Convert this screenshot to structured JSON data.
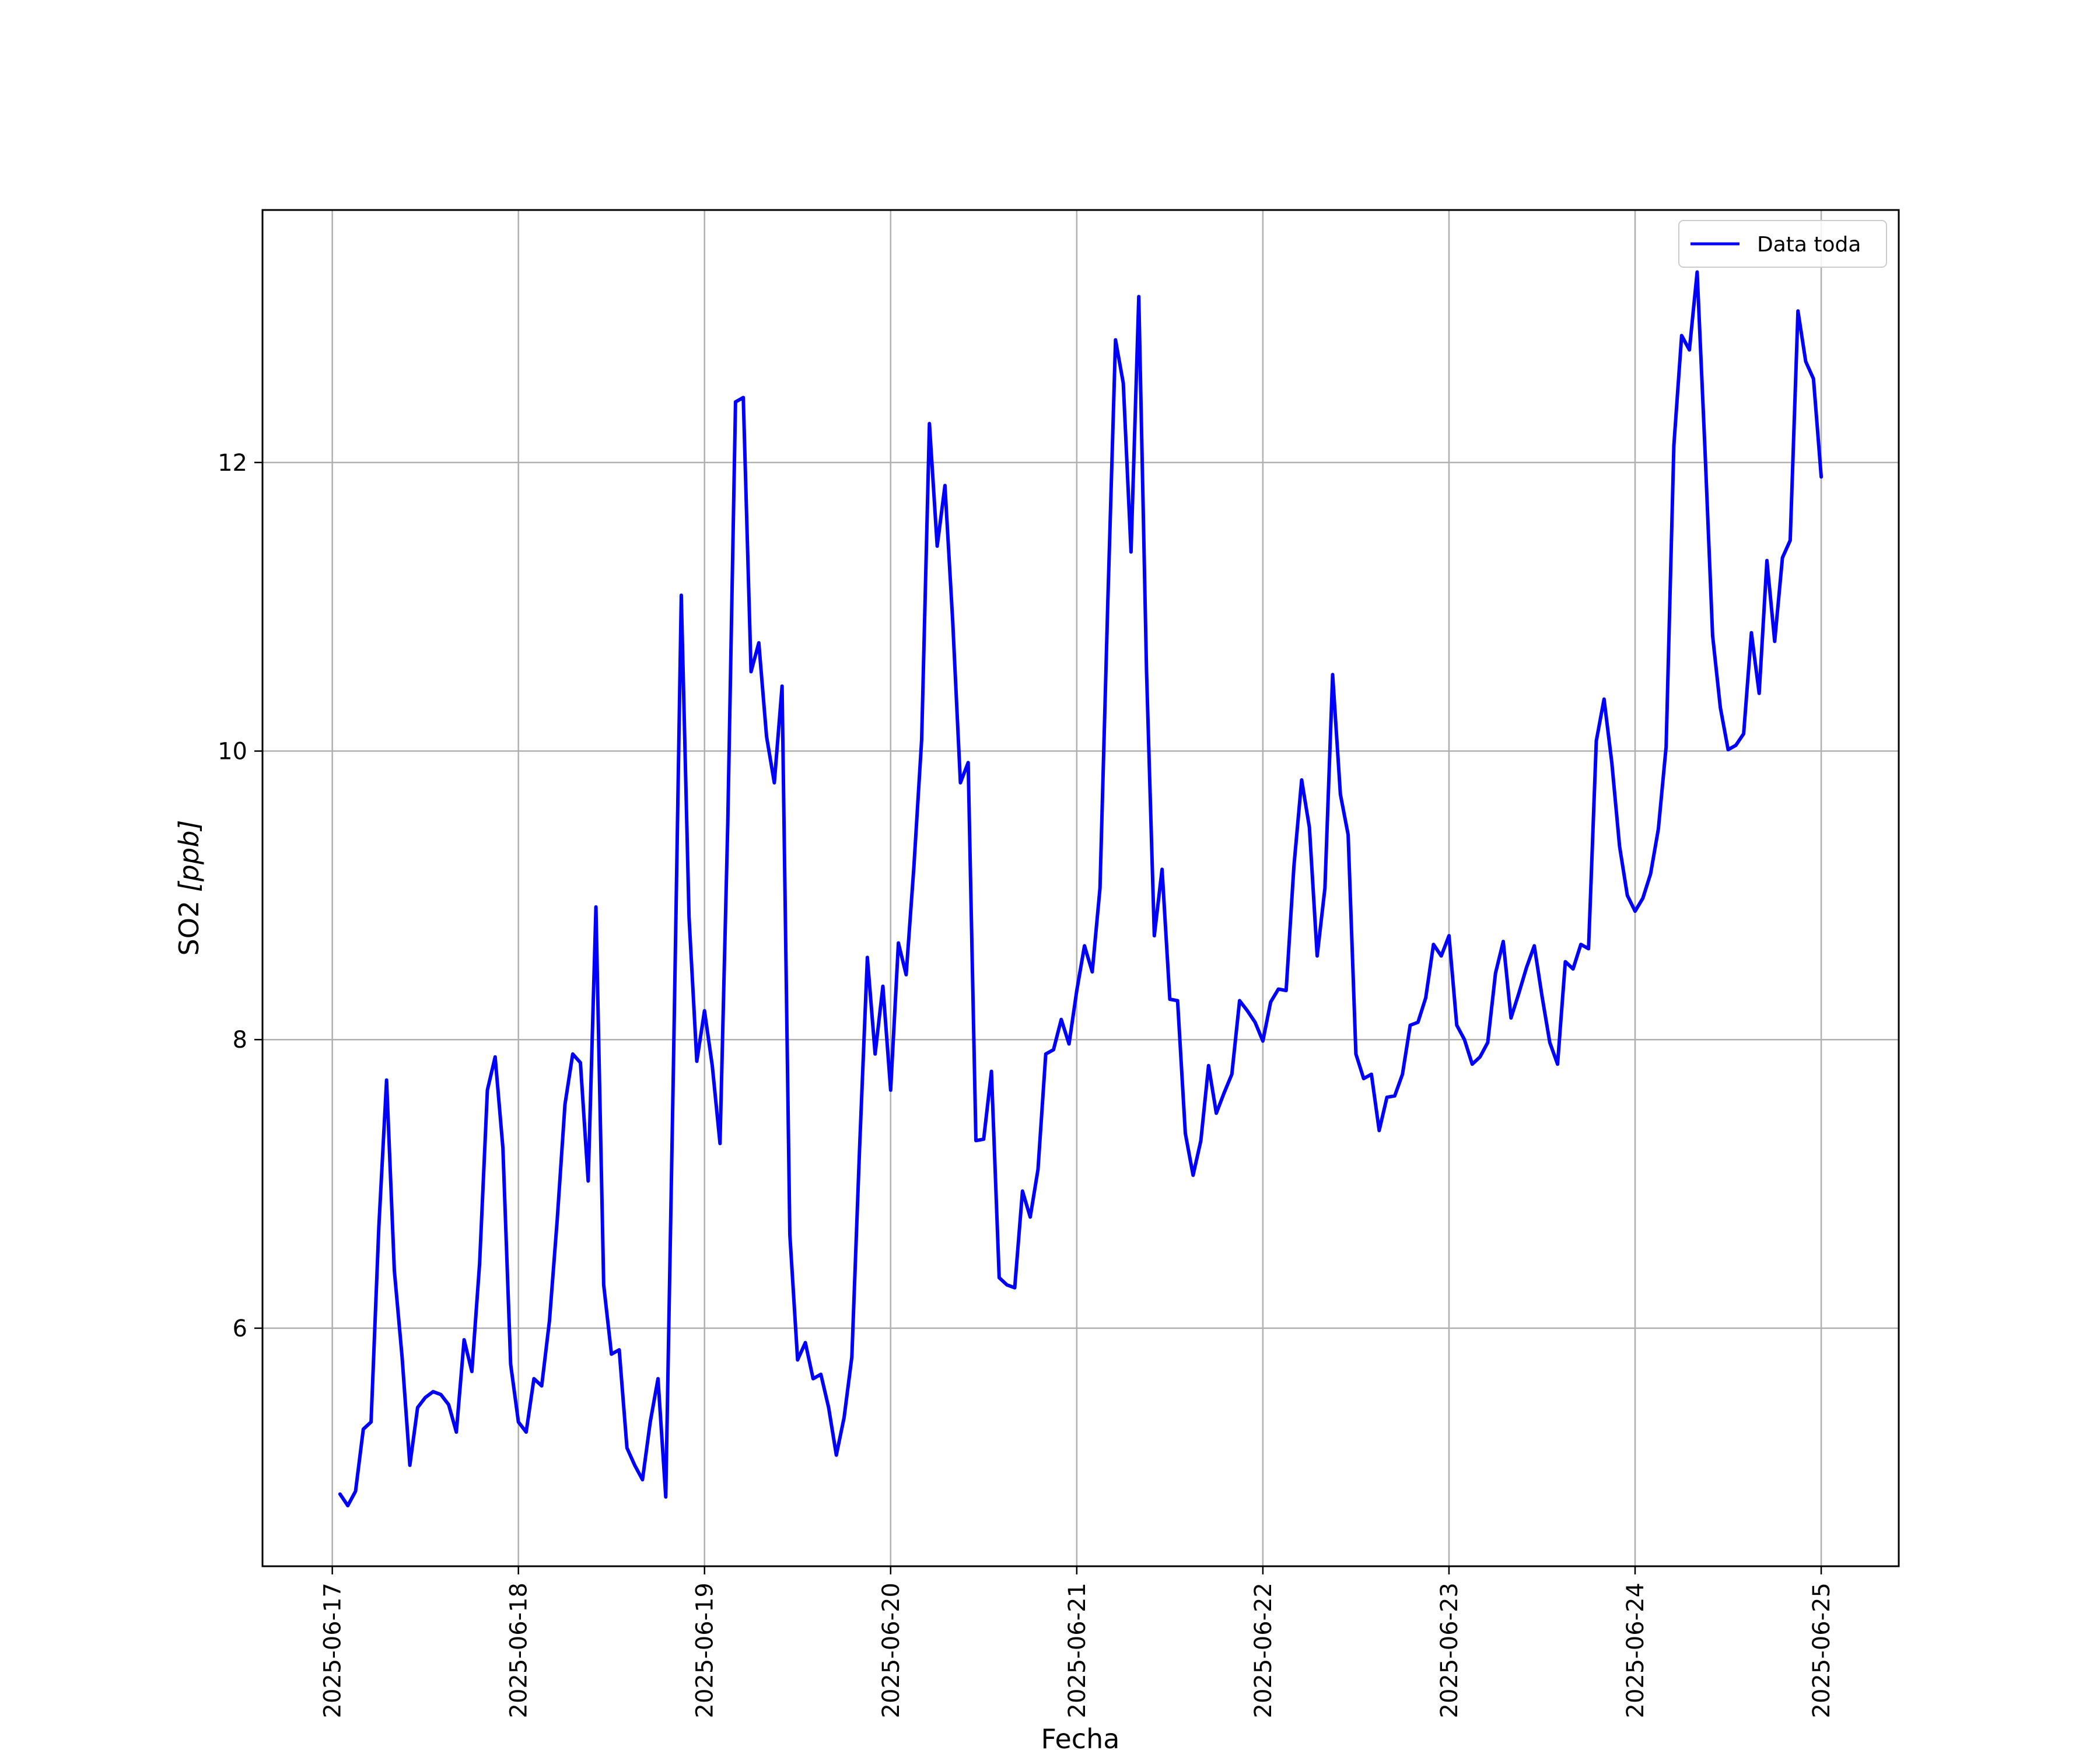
{
  "chart_data": {
    "type": "line",
    "xlabel": "Fecha",
    "ylabel_main": "SO2 ",
    "ylabel_unit": "[ppb]",
    "x_is_date": true,
    "xlim": [
      "2025-06-16 15:00",
      "2025-06-25 10:00"
    ],
    "ylim": [
      4.35,
      13.75
    ],
    "x_ticks": [
      "2025-06-17",
      "2025-06-18",
      "2025-06-19",
      "2025-06-20",
      "2025-06-21",
      "2025-06-22",
      "2025-06-23",
      "2025-06-24",
      "2025-06-25"
    ],
    "y_ticks": [
      6,
      8,
      10,
      12
    ],
    "grid": true,
    "legend_position": "top-right",
    "series": [
      {
        "name": "Data toda",
        "color": "#0000ff",
        "x": [
          "2025-06-17 01:00",
          "2025-06-17 02:00",
          "2025-06-17 03:00",
          "2025-06-17 04:00",
          "2025-06-17 05:00",
          "2025-06-17 06:00",
          "2025-06-17 07:00",
          "2025-06-17 08:00",
          "2025-06-17 09:00",
          "2025-06-17 10:00",
          "2025-06-17 11:00",
          "2025-06-17 12:00",
          "2025-06-17 13:00",
          "2025-06-17 14:00",
          "2025-06-17 15:00",
          "2025-06-17 16:00",
          "2025-06-17 17:00",
          "2025-06-17 18:00",
          "2025-06-17 19:00",
          "2025-06-17 20:00",
          "2025-06-17 21:00",
          "2025-06-17 22:00",
          "2025-06-17 23:00",
          "2025-06-18 00:00",
          "2025-06-18 01:00",
          "2025-06-18 02:00",
          "2025-06-18 03:00",
          "2025-06-18 04:00",
          "2025-06-18 05:00",
          "2025-06-18 06:00",
          "2025-06-18 07:00",
          "2025-06-18 08:00",
          "2025-06-18 09:00",
          "2025-06-18 10:00",
          "2025-06-18 11:00",
          "2025-06-18 12:00",
          "2025-06-18 13:00",
          "2025-06-18 14:00",
          "2025-06-18 15:00",
          "2025-06-18 16:00",
          "2025-06-18 17:00",
          "2025-06-18 18:00",
          "2025-06-18 19:00",
          "2025-06-18 20:00",
          "2025-06-18 21:00",
          "2025-06-18 22:00",
          "2025-06-18 23:00",
          "2025-06-19 00:00",
          "2025-06-19 01:00",
          "2025-06-19 02:00",
          "2025-06-19 03:00",
          "2025-06-19 04:00",
          "2025-06-19 05:00",
          "2025-06-19 06:00",
          "2025-06-19 07:00",
          "2025-06-19 08:00",
          "2025-06-19 09:00",
          "2025-06-19 10:00",
          "2025-06-19 11:00",
          "2025-06-19 12:00",
          "2025-06-19 13:00",
          "2025-06-19 14:00",
          "2025-06-19 15:00",
          "2025-06-19 16:00",
          "2025-06-19 17:00",
          "2025-06-19 18:00",
          "2025-06-19 19:00",
          "2025-06-19 20:00",
          "2025-06-19 21:00",
          "2025-06-19 22:00",
          "2025-06-19 23:00",
          "2025-06-20 00:00",
          "2025-06-20 01:00",
          "2025-06-20 02:00",
          "2025-06-20 03:00",
          "2025-06-20 04:00",
          "2025-06-20 05:00",
          "2025-06-20 06:00",
          "2025-06-20 07:00",
          "2025-06-20 08:00",
          "2025-06-20 09:00",
          "2025-06-20 10:00",
          "2025-06-20 11:00",
          "2025-06-20 12:00",
          "2025-06-20 13:00",
          "2025-06-20 14:00",
          "2025-06-20 15:00",
          "2025-06-20 16:00",
          "2025-06-20 17:00",
          "2025-06-20 18:00",
          "2025-06-20 19:00",
          "2025-06-20 20:00",
          "2025-06-20 21:00",
          "2025-06-20 22:00",
          "2025-06-20 23:00",
          "2025-06-21 00:00",
          "2025-06-21 01:00",
          "2025-06-21 02:00",
          "2025-06-21 03:00",
          "2025-06-21 04:00",
          "2025-06-21 05:00",
          "2025-06-21 06:00",
          "2025-06-21 07:00",
          "2025-06-21 08:00",
          "2025-06-21 09:00",
          "2025-06-21 10:00",
          "2025-06-21 11:00",
          "2025-06-21 12:00",
          "2025-06-21 13:00",
          "2025-06-21 14:00",
          "2025-06-21 15:00",
          "2025-06-21 16:00",
          "2025-06-21 17:00",
          "2025-06-21 18:00",
          "2025-06-21 19:00",
          "2025-06-21 20:00",
          "2025-06-21 21:00",
          "2025-06-21 22:00",
          "2025-06-21 23:00",
          "2025-06-22 00:00",
          "2025-06-22 01:00",
          "2025-06-22 02:00",
          "2025-06-22 03:00",
          "2025-06-22 04:00",
          "2025-06-22 05:00",
          "2025-06-22 06:00",
          "2025-06-22 07:00",
          "2025-06-22 08:00",
          "2025-06-22 09:00",
          "2025-06-22 10:00",
          "2025-06-22 11:00",
          "2025-06-22 12:00",
          "2025-06-22 13:00",
          "2025-06-22 14:00",
          "2025-06-22 15:00",
          "2025-06-22 16:00",
          "2025-06-22 17:00",
          "2025-06-22 18:00",
          "2025-06-22 19:00",
          "2025-06-22 20:00",
          "2025-06-22 21:00",
          "2025-06-22 22:00",
          "2025-06-22 23:00",
          "2025-06-23 00:00",
          "2025-06-23 01:00",
          "2025-06-23 02:00",
          "2025-06-23 03:00",
          "2025-06-23 04:00",
          "2025-06-23 05:00",
          "2025-06-23 06:00",
          "2025-06-23 07:00",
          "2025-06-23 08:00",
          "2025-06-23 09:00",
          "2025-06-23 10:00",
          "2025-06-23 11:00",
          "2025-06-23 12:00",
          "2025-06-23 13:00",
          "2025-06-23 14:00",
          "2025-06-23 15:00",
          "2025-06-23 16:00",
          "2025-06-23 17:00",
          "2025-06-23 18:00",
          "2025-06-23 19:00",
          "2025-06-23 20:00",
          "2025-06-23 21:00",
          "2025-06-23 22:00",
          "2025-06-23 23:00",
          "2025-06-24 00:00",
          "2025-06-24 01:00",
          "2025-06-24 02:00",
          "2025-06-24 03:00",
          "2025-06-24 04:00",
          "2025-06-24 05:00",
          "2025-06-24 06:00",
          "2025-06-24 07:00",
          "2025-06-24 08:00",
          "2025-06-24 09:00",
          "2025-06-24 10:00",
          "2025-06-24 11:00",
          "2025-06-24 12:00",
          "2025-06-24 13:00",
          "2025-06-24 14:00",
          "2025-06-24 15:00",
          "2025-06-24 16:00",
          "2025-06-24 17:00",
          "2025-06-24 18:00",
          "2025-06-24 19:00",
          "2025-06-24 20:00",
          "2025-06-24 21:00",
          "2025-06-24 22:00",
          "2025-06-24 23:00",
          "2025-06-25 00:00"
        ],
        "y": [
          4.85,
          4.77,
          4.87,
          5.3,
          5.35,
          6.7,
          7.72,
          6.4,
          5.8,
          5.05,
          5.45,
          5.52,
          5.56,
          5.54,
          5.47,
          5.28,
          5.92,
          5.7,
          6.45,
          7.65,
          7.88,
          7.25,
          5.75,
          5.35,
          5.28,
          5.65,
          5.6,
          6.05,
          6.75,
          7.55,
          7.9,
          7.84,
          7.02,
          8.92,
          6.3,
          5.82,
          5.85,
          5.17,
          5.05,
          4.95,
          5.35,
          5.65,
          4.83,
          7.85,
          11.08,
          8.85,
          7.85,
          8.2,
          7.82,
          7.28,
          9.5,
          12.42,
          12.45,
          10.55,
          10.75,
          10.1,
          9.78,
          10.45,
          6.65,
          5.78,
          5.9,
          5.65,
          5.68,
          5.45,
          5.12,
          5.38,
          5.8,
          7.25,
          8.57,
          7.9,
          8.37,
          7.65,
          8.67,
          8.45,
          9.2,
          10.08,
          12.27,
          11.42,
          11.84,
          10.9,
          9.78,
          9.92,
          7.3,
          7.31,
          7.78,
          6.35,
          6.3,
          6.28,
          6.95,
          6.77,
          7.1,
          7.9,
          7.93,
          8.14,
          7.97,
          8.34,
          8.65,
          8.47,
          9.05,
          11.02,
          12.85,
          12.55,
          11.38,
          13.15,
          10.55,
          8.72,
          9.18,
          8.28,
          8.27,
          7.35,
          7.06,
          7.3,
          7.82,
          7.49,
          7.63,
          7.76,
          8.27,
          8.2,
          8.12,
          7.99,
          8.26,
          8.35,
          8.34,
          9.2,
          9.8,
          9.47,
          8.58,
          9.05,
          10.53,
          9.7,
          9.42,
          7.9,
          7.73,
          7.76,
          7.37,
          7.6,
          7.61,
          7.76,
          8.1,
          8.12,
          8.29,
          8.66,
          8.58,
          8.72,
          8.1,
          8.0,
          7.83,
          7.88,
          7.98,
          8.46,
          8.68,
          8.15,
          8.32,
          8.5,
          8.65,
          8.3,
          7.98,
          7.83,
          8.54,
          8.49,
          8.66,
          8.63,
          10.07,
          10.36,
          9.92,
          9.34,
          9.0,
          8.89,
          8.98,
          9.15,
          9.46,
          10.03,
          12.12,
          12.88,
          12.78,
          13.32,
          12.1,
          10.8,
          10.3,
          10.01,
          10.04,
          10.12,
          10.82,
          10.4,
          11.32,
          10.76,
          11.34,
          11.46,
          13.05,
          12.7,
          12.58,
          11.9
        ]
      }
    ]
  }
}
